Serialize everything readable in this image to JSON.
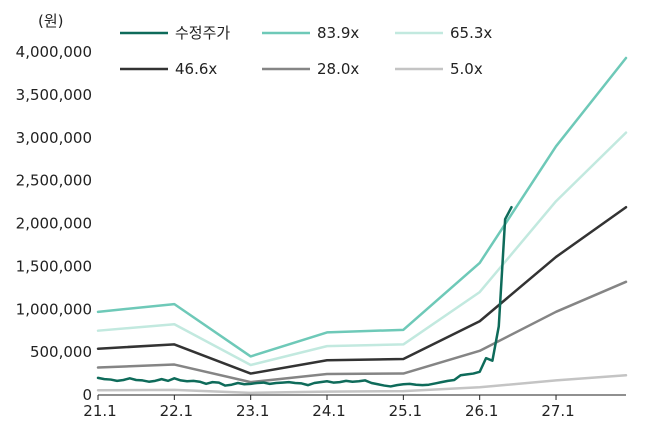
{
  "chart_data": {
    "type": "line",
    "title": "",
    "unit_label": "(원)",
    "xlabel": "",
    "ylabel": "",
    "x_ticks": [
      "21.1",
      "22.1",
      "23.1",
      "24.1",
      "25.1",
      "26.1",
      "27.1"
    ],
    "xlim": [
      "2021-01",
      "2027-12"
    ],
    "ylim": [
      0,
      4000000
    ],
    "y_ticks": [
      0,
      500000,
      1000000,
      1500000,
      2000000,
      2500000,
      3000000,
      3500000,
      4000000
    ],
    "y_tick_labels": [
      "0",
      "500,000",
      "1,000,000",
      "1,500,000",
      "2,000,000",
      "2,500,000",
      "3,000,000",
      "3,500,000",
      "4,000,000"
    ],
    "grid": false,
    "legend": "top",
    "series": [
      {
        "name": "수정주가",
        "color": "#0e6b5a",
        "width": 2.5,
        "points": [
          [
            "2021-01",
            200000
          ],
          [
            "2021-02",
            185000
          ],
          [
            "2021-03",
            180000
          ],
          [
            "2021-04",
            165000
          ],
          [
            "2021-05",
            175000
          ],
          [
            "2021-06",
            195000
          ],
          [
            "2021-07",
            175000
          ],
          [
            "2021-08",
            170000
          ],
          [
            "2021-09",
            155000
          ],
          [
            "2021-10",
            165000
          ],
          [
            "2021-11",
            185000
          ],
          [
            "2021-12",
            165000
          ],
          [
            "2022-01",
            195000
          ],
          [
            "2022-02",
            170000
          ],
          [
            "2022-03",
            160000
          ],
          [
            "2022-04",
            165000
          ],
          [
            "2022-05",
            155000
          ],
          [
            "2022-06",
            130000
          ],
          [
            "2022-07",
            150000
          ],
          [
            "2022-08",
            145000
          ],
          [
            "2022-09",
            110000
          ],
          [
            "2022-10",
            120000
          ],
          [
            "2022-11",
            140000
          ],
          [
            "2022-12",
            125000
          ],
          [
            "2023-01",
            130000
          ],
          [
            "2023-02",
            140000
          ],
          [
            "2023-03",
            145000
          ],
          [
            "2023-04",
            130000
          ],
          [
            "2023-05",
            140000
          ],
          [
            "2023-06",
            145000
          ],
          [
            "2023-07",
            150000
          ],
          [
            "2023-08",
            140000
          ],
          [
            "2023-09",
            135000
          ],
          [
            "2023-10",
            115000
          ],
          [
            "2023-11",
            140000
          ],
          [
            "2023-12",
            150000
          ],
          [
            "2024-01",
            160000
          ],
          [
            "2024-02",
            145000
          ],
          [
            "2024-03",
            150000
          ],
          [
            "2024-04",
            165000
          ],
          [
            "2024-05",
            155000
          ],
          [
            "2024-06",
            160000
          ],
          [
            "2024-07",
            170000
          ],
          [
            "2024-08",
            140000
          ],
          [
            "2024-09",
            125000
          ],
          [
            "2024-10",
            110000
          ],
          [
            "2024-11",
            100000
          ],
          [
            "2024-12",
            115000
          ],
          [
            "2025-01",
            125000
          ],
          [
            "2025-02",
            130000
          ],
          [
            "2025-03",
            120000
          ],
          [
            "2025-04",
            115000
          ],
          [
            "2025-05",
            120000
          ],
          [
            "2025-06",
            135000
          ],
          [
            "2025-07",
            150000
          ],
          [
            "2025-08",
            165000
          ],
          [
            "2025-09",
            175000
          ],
          [
            "2025-10",
            230000
          ],
          [
            "2025-11",
            240000
          ],
          [
            "2025-12",
            250000
          ],
          [
            "2026-01",
            270000
          ],
          [
            "2026-02",
            430000
          ],
          [
            "2026-03",
            400000
          ],
          [
            "2026-04",
            800000
          ],
          [
            "2026-05",
            2050000
          ],
          [
            "2026-06",
            2190000
          ]
        ]
      },
      {
        "name": "83.9x",
        "color": "#6ec9b8",
        "width": 2.5,
        "points": [
          [
            "2021-01",
            970000
          ],
          [
            "2022-01",
            1060000
          ],
          [
            "2023-01",
            450000
          ],
          [
            "2024-01",
            730000
          ],
          [
            "2025-01",
            760000
          ],
          [
            "2026-01",
            1540000
          ],
          [
            "2027-01",
            2900000
          ],
          [
            "2027-12",
            3930000
          ]
        ]
      },
      {
        "name": "65.3x",
        "color": "#c2e9df",
        "width": 2.5,
        "points": [
          [
            "2021-01",
            750000
          ],
          [
            "2022-01",
            825000
          ],
          [
            "2023-01",
            350000
          ],
          [
            "2024-01",
            570000
          ],
          [
            "2025-01",
            590000
          ],
          [
            "2026-01",
            1200000
          ],
          [
            "2027-01",
            2260000
          ],
          [
            "2027-12",
            3060000
          ]
        ]
      },
      {
        "name": "46.6x",
        "color": "#333333",
        "width": 2.5,
        "points": [
          [
            "2021-01",
            540000
          ],
          [
            "2022-01",
            590000
          ],
          [
            "2023-01",
            250000
          ],
          [
            "2024-01",
            405000
          ],
          [
            "2025-01",
            420000
          ],
          [
            "2026-01",
            860000
          ],
          [
            "2027-01",
            1610000
          ],
          [
            "2027-12",
            2190000
          ]
        ]
      },
      {
        "name": "28.0x",
        "color": "#858585",
        "width": 2.5,
        "points": [
          [
            "2021-01",
            320000
          ],
          [
            "2022-01",
            355000
          ],
          [
            "2023-01",
            150000
          ],
          [
            "2024-01",
            245000
          ],
          [
            "2025-01",
            250000
          ],
          [
            "2026-01",
            515000
          ],
          [
            "2027-01",
            970000
          ],
          [
            "2027-12",
            1320000
          ]
        ]
      },
      {
        "name": "5.0x",
        "color": "#c4c4c4",
        "width": 2.5,
        "points": [
          [
            "2021-01",
            55000
          ],
          [
            "2022-01",
            60000
          ],
          [
            "2023-01",
            25000
          ],
          [
            "2024-01",
            40000
          ],
          [
            "2025-01",
            45000
          ],
          [
            "2026-01",
            90000
          ],
          [
            "2027-01",
            170000
          ],
          [
            "2027-12",
            230000
          ]
        ]
      }
    ]
  }
}
